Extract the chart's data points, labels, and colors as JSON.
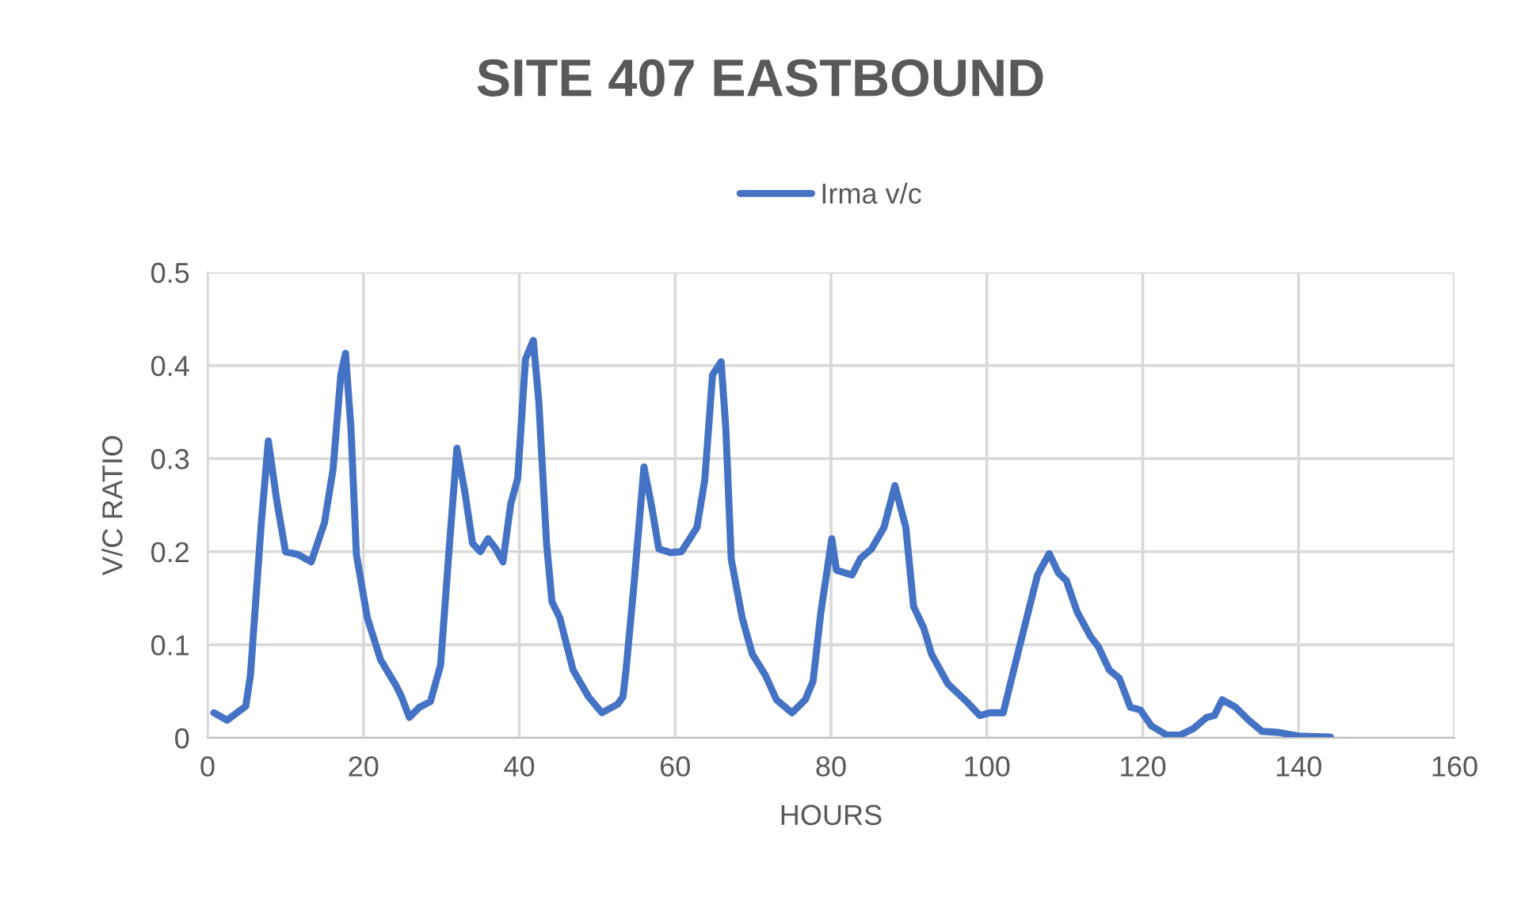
{
  "chart_data": {
    "type": "line",
    "title": "SITE 407 EASTBOUND",
    "xlabel": "HOURS",
    "ylabel": "V/C RATIO",
    "x": [
      0.8,
      2.5,
      4.9,
      5.5,
      6.9,
      7.8,
      8.9,
      10,
      11.6,
      13.3,
      15,
      16.1,
      17.1,
      17.7,
      18.4,
      19.1,
      20.5,
      22.2,
      24.2,
      24.9,
      25.9,
      27.2,
      28.6,
      29.9,
      31,
      32,
      33,
      34,
      35,
      36,
      37,
      37.9,
      38.9,
      39.8,
      40.8,
      41.8,
      42.5,
      43.5,
      44.2,
      45.2,
      46.9,
      48.9,
      50.6,
      52.6,
      53.3,
      53.7,
      54.7,
      56,
      57,
      57.9,
      59.4,
      60.8,
      62.8,
      63.8,
      64.8,
      65.9,
      66.5,
      67.2,
      68.6,
      69.9,
      71.6,
      73,
      75,
      76.7,
      77.7,
      78.7,
      80.1,
      80.7,
      82.7,
      83.8,
      85.2,
      86.8,
      88.2,
      89.6,
      90.6,
      91.9,
      92.9,
      95,
      97.4,
      99.1,
      100.4,
      102.1,
      104.1,
      106.5,
      108,
      109.2,
      110.2,
      111.6,
      113.3,
      114.3,
      115.7,
      117,
      118.4,
      119.7,
      121.1,
      123.1,
      124.8,
      126.5,
      128.2,
      129.2,
      130.2,
      131.9,
      133.6,
      135.3,
      137.3,
      140,
      144.1
    ],
    "series": [
      {
        "name": "Irma v/c",
        "color": "#4472c4",
        "values": [
          0.027,
          0.019,
          0.034,
          0.067,
          0.231,
          0.319,
          0.254,
          0.2,
          0.197,
          0.189,
          0.231,
          0.288,
          0.39,
          0.413,
          0.333,
          0.197,
          0.129,
          0.084,
          0.056,
          0.044,
          0.022,
          0.033,
          0.039,
          0.078,
          0.203,
          0.311,
          0.265,
          0.209,
          0.2,
          0.214,
          0.203,
          0.189,
          0.251,
          0.279,
          0.407,
          0.427,
          0.362,
          0.209,
          0.146,
          0.129,
          0.073,
          0.044,
          0.027,
          0.036,
          0.044,
          0.073,
          0.163,
          0.291,
          0.248,
          0.203,
          0.199,
          0.2,
          0.226,
          0.277,
          0.39,
          0.404,
          0.333,
          0.192,
          0.129,
          0.09,
          0.067,
          0.041,
          0.027,
          0.041,
          0.061,
          0.135,
          0.214,
          0.18,
          0.175,
          0.193,
          0.203,
          0.226,
          0.271,
          0.226,
          0.141,
          0.118,
          0.09,
          0.058,
          0.039,
          0.024,
          0.027,
          0.027,
          0.095,
          0.175,
          0.198,
          0.177,
          0.169,
          0.135,
          0.109,
          0.098,
          0.073,
          0.064,
          0.033,
          0.03,
          0.013,
          0.003,
          0.003,
          0.01,
          0.022,
          0.024,
          0.041,
          0.033,
          0.019,
          0.007,
          0.006,
          0.002,
          0.001
        ]
      }
    ],
    "xlim": [
      0,
      160
    ],
    "xticks": [
      0,
      20,
      40,
      60,
      80,
      100,
      120,
      140,
      160
    ],
    "ylim": [
      0,
      0.5
    ],
    "yticks": [
      {
        "value": 0,
        "label": "0"
      },
      0.1,
      0.2,
      0.3,
      0.4,
      0.5
    ],
    "grid": true,
    "legend": "top",
    "marker": "none",
    "line_style": "solid"
  }
}
